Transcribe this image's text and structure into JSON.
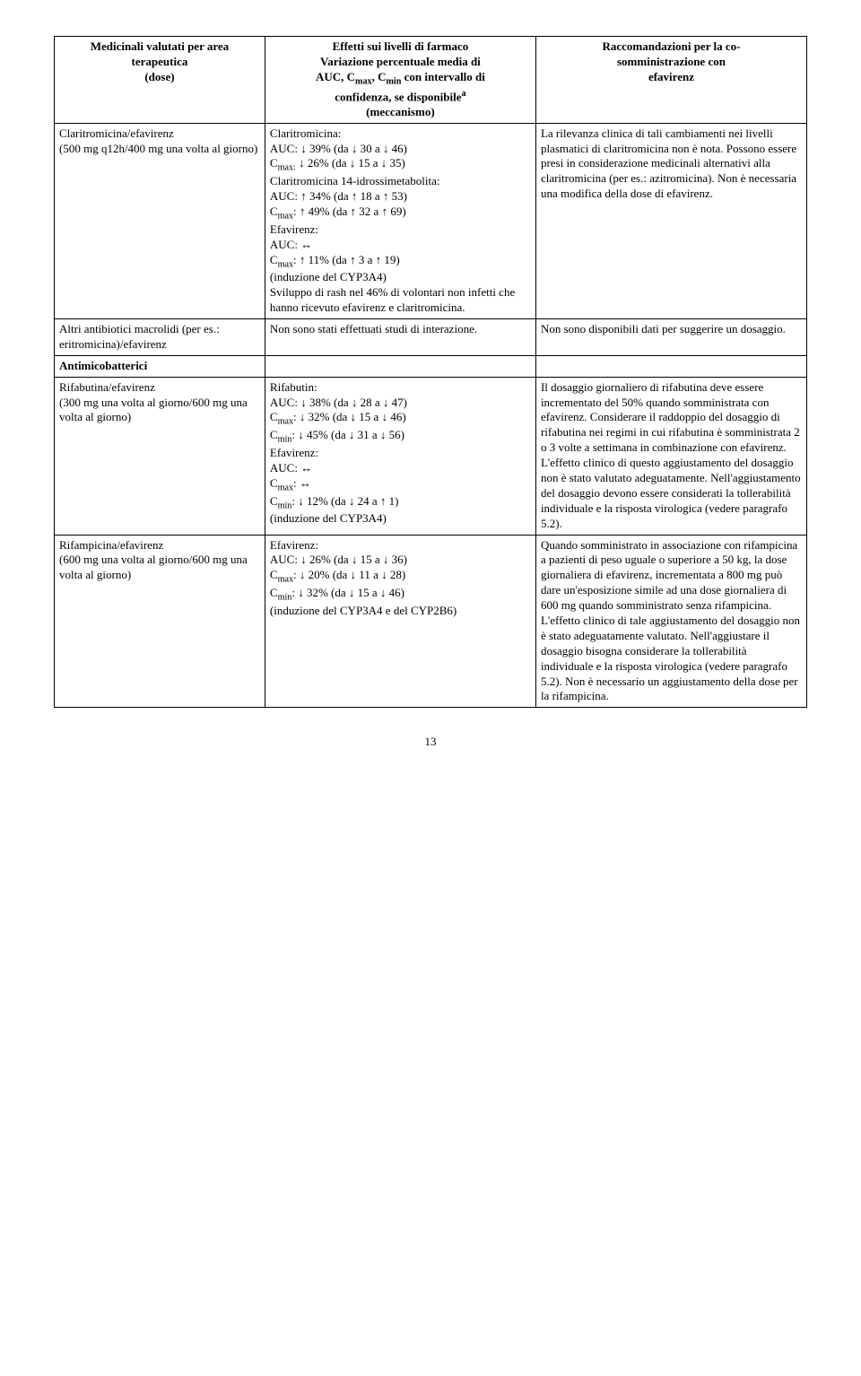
{
  "header": {
    "col1_line1": "Medicinali valutati per area",
    "col1_line2": "terapeutica",
    "col1_line3": "(dose)",
    "col2_line1": "Effetti sui livelli di farmaco",
    "col2_line2": "Variazione percentuale media di",
    "col2_line3a": "AUC, C",
    "col2_line3b": "max",
    "col2_line3c": ", C",
    "col2_line3d": "min",
    "col2_line3e": " con intervallo di",
    "col2_line4a": "confidenza, se disponibile",
    "col2_line4b": "a",
    "col2_line5": "(meccanismo)",
    "col3_line1": "Raccomandazioni per la co-",
    "col3_line2": "somministrazione con",
    "col3_line3": "efavirenz"
  },
  "row1": {
    "c1_1": "Claritromicina/efavirenz",
    "c1_2": "(500 mg q12h/400 mg una volta al giorno)",
    "c2_1": "Claritromicina:",
    "c2_2": "AUC: ↓ 39% (da ↓ 30 a ↓ 46)",
    "c2_3a": "C",
    "c2_3b": "max:",
    "c2_3c": " ↓ 26% (da ↓ 15 a ↓ 35)",
    "c2_4": "Claritromicina 14-idrossimetabolita:",
    "c2_5": "AUC: ↑ 34% (da ↑ 18 a ↑ 53)",
    "c2_6a": "C",
    "c2_6b": "max",
    "c2_6c": ": ↑ 49% (da ↑ 32 a ↑ 69)",
    "c2_7": "Efavirenz:",
    "c2_8": "AUC: ↔",
    "c2_9a": "C",
    "c2_9b": "max",
    "c2_9c": ": ↑ 11% (da ↑ 3 a ↑ 19)",
    "c2_10": "(induzione del CYP3A4)",
    "c2_11": "Sviluppo di rash nel 46% di volontari non infetti che hanno ricevuto efavirenz e claritromicina.",
    "c3": "La rilevanza clinica di tali cambiamenti nei livelli plasmatici di claritromicina non è nota. Possono essere presi in considerazione medicinali alternativi alla claritromicina (per es.: azitromicina). Non è necessaria una modifica della dose di efavirenz."
  },
  "row2": {
    "c1": "Altri antibiotici macrolidi (per es.: eritromicina)/efavirenz",
    "c2": "Non sono stati effettuati studi di interazione.",
    "c3": "Non sono disponibili dati per suggerire un dosaggio."
  },
  "row3": {
    "c1": "Antimicobatterici"
  },
  "row4": {
    "c1_1": "Rifabutina/efavirenz",
    "c1_2": "(300 mg una volta al giorno/600 mg una volta al giorno)",
    "c2_1": "Rifabutin:",
    "c2_2": "AUC: ↓ 38% (da ↓ 28 a ↓ 47)",
    "c2_3a": "C",
    "c2_3b": "max",
    "c2_3c": ": ↓ 32% (da ↓ 15 a ↓ 46)",
    "c2_4a": "C",
    "c2_4b": "min",
    "c2_4c": ": ↓ 45% (da ↓ 31 a ↓ 56)",
    "c2_5": "Efavirenz:",
    "c2_6": "AUC: ↔",
    "c2_7a": "C",
    "c2_7b": "max",
    "c2_7c": ": ↔",
    "c2_8a": "C",
    "c2_8b": "min",
    "c2_8c": ": ↓ 12% (da ↓ 24 a ↑ 1)",
    "c2_9": "(induzione del CYP3A4)",
    "c3": "Il dosaggio giornaliero di rifabutina deve essere incrementato del 50% quando somministrata con efavirenz. Considerare il raddoppio del dosaggio di rifabutina nei regimi in cui rifabutina è somministrata 2 o 3 volte a settimana in combinazione con efavirenz. L'effetto clinico di questo aggiustamento del dosaggio non è stato valutato adeguatamente. Nell'aggiustamento del dosaggio devono essere considerati la tollerabilità individuale e la risposta virologica (vedere paragrafo 5.2)."
  },
  "row5": {
    "c1_1": "Rifampicina/efavirenz",
    "c1_2": "(600 mg una volta al giorno/600 mg una volta al giorno)",
    "c2_1": "Efavirenz:",
    "c2_2": "AUC: ↓ 26% (da ↓ 15 a ↓ 36)",
    "c2_3a": "C",
    "c2_3b": "max",
    "c2_3c": ": ↓ 20% (da ↓ 11 a ↓ 28)",
    "c2_4a": "C",
    "c2_4b": "min",
    "c2_4c": ": ↓ 32% (da ↓ 15 a ↓ 46)",
    "c2_5": "(induzione del CYP3A4 e del CYP2B6)",
    "c3": "Quando somministrato in associazione con rifampicina a pazienti di peso uguale o superiore a 50 kg, la dose giornaliera di efavirenz, incrementata a 800 mg può dare un'esposizione simile ad una dose giornaliera di 600 mg quando somministrato senza rifampicina. L'effetto clinico di tale aggiustamento del dosaggio non è stato adeguatamente valutato. Nell'aggiustare il dosaggio bisogna considerare la tollerabilità individuale e la risposta virologica (vedere paragrafo 5.2). Non è necessario un aggiustamento della dose per la rifampicina."
  },
  "page_number": "13"
}
